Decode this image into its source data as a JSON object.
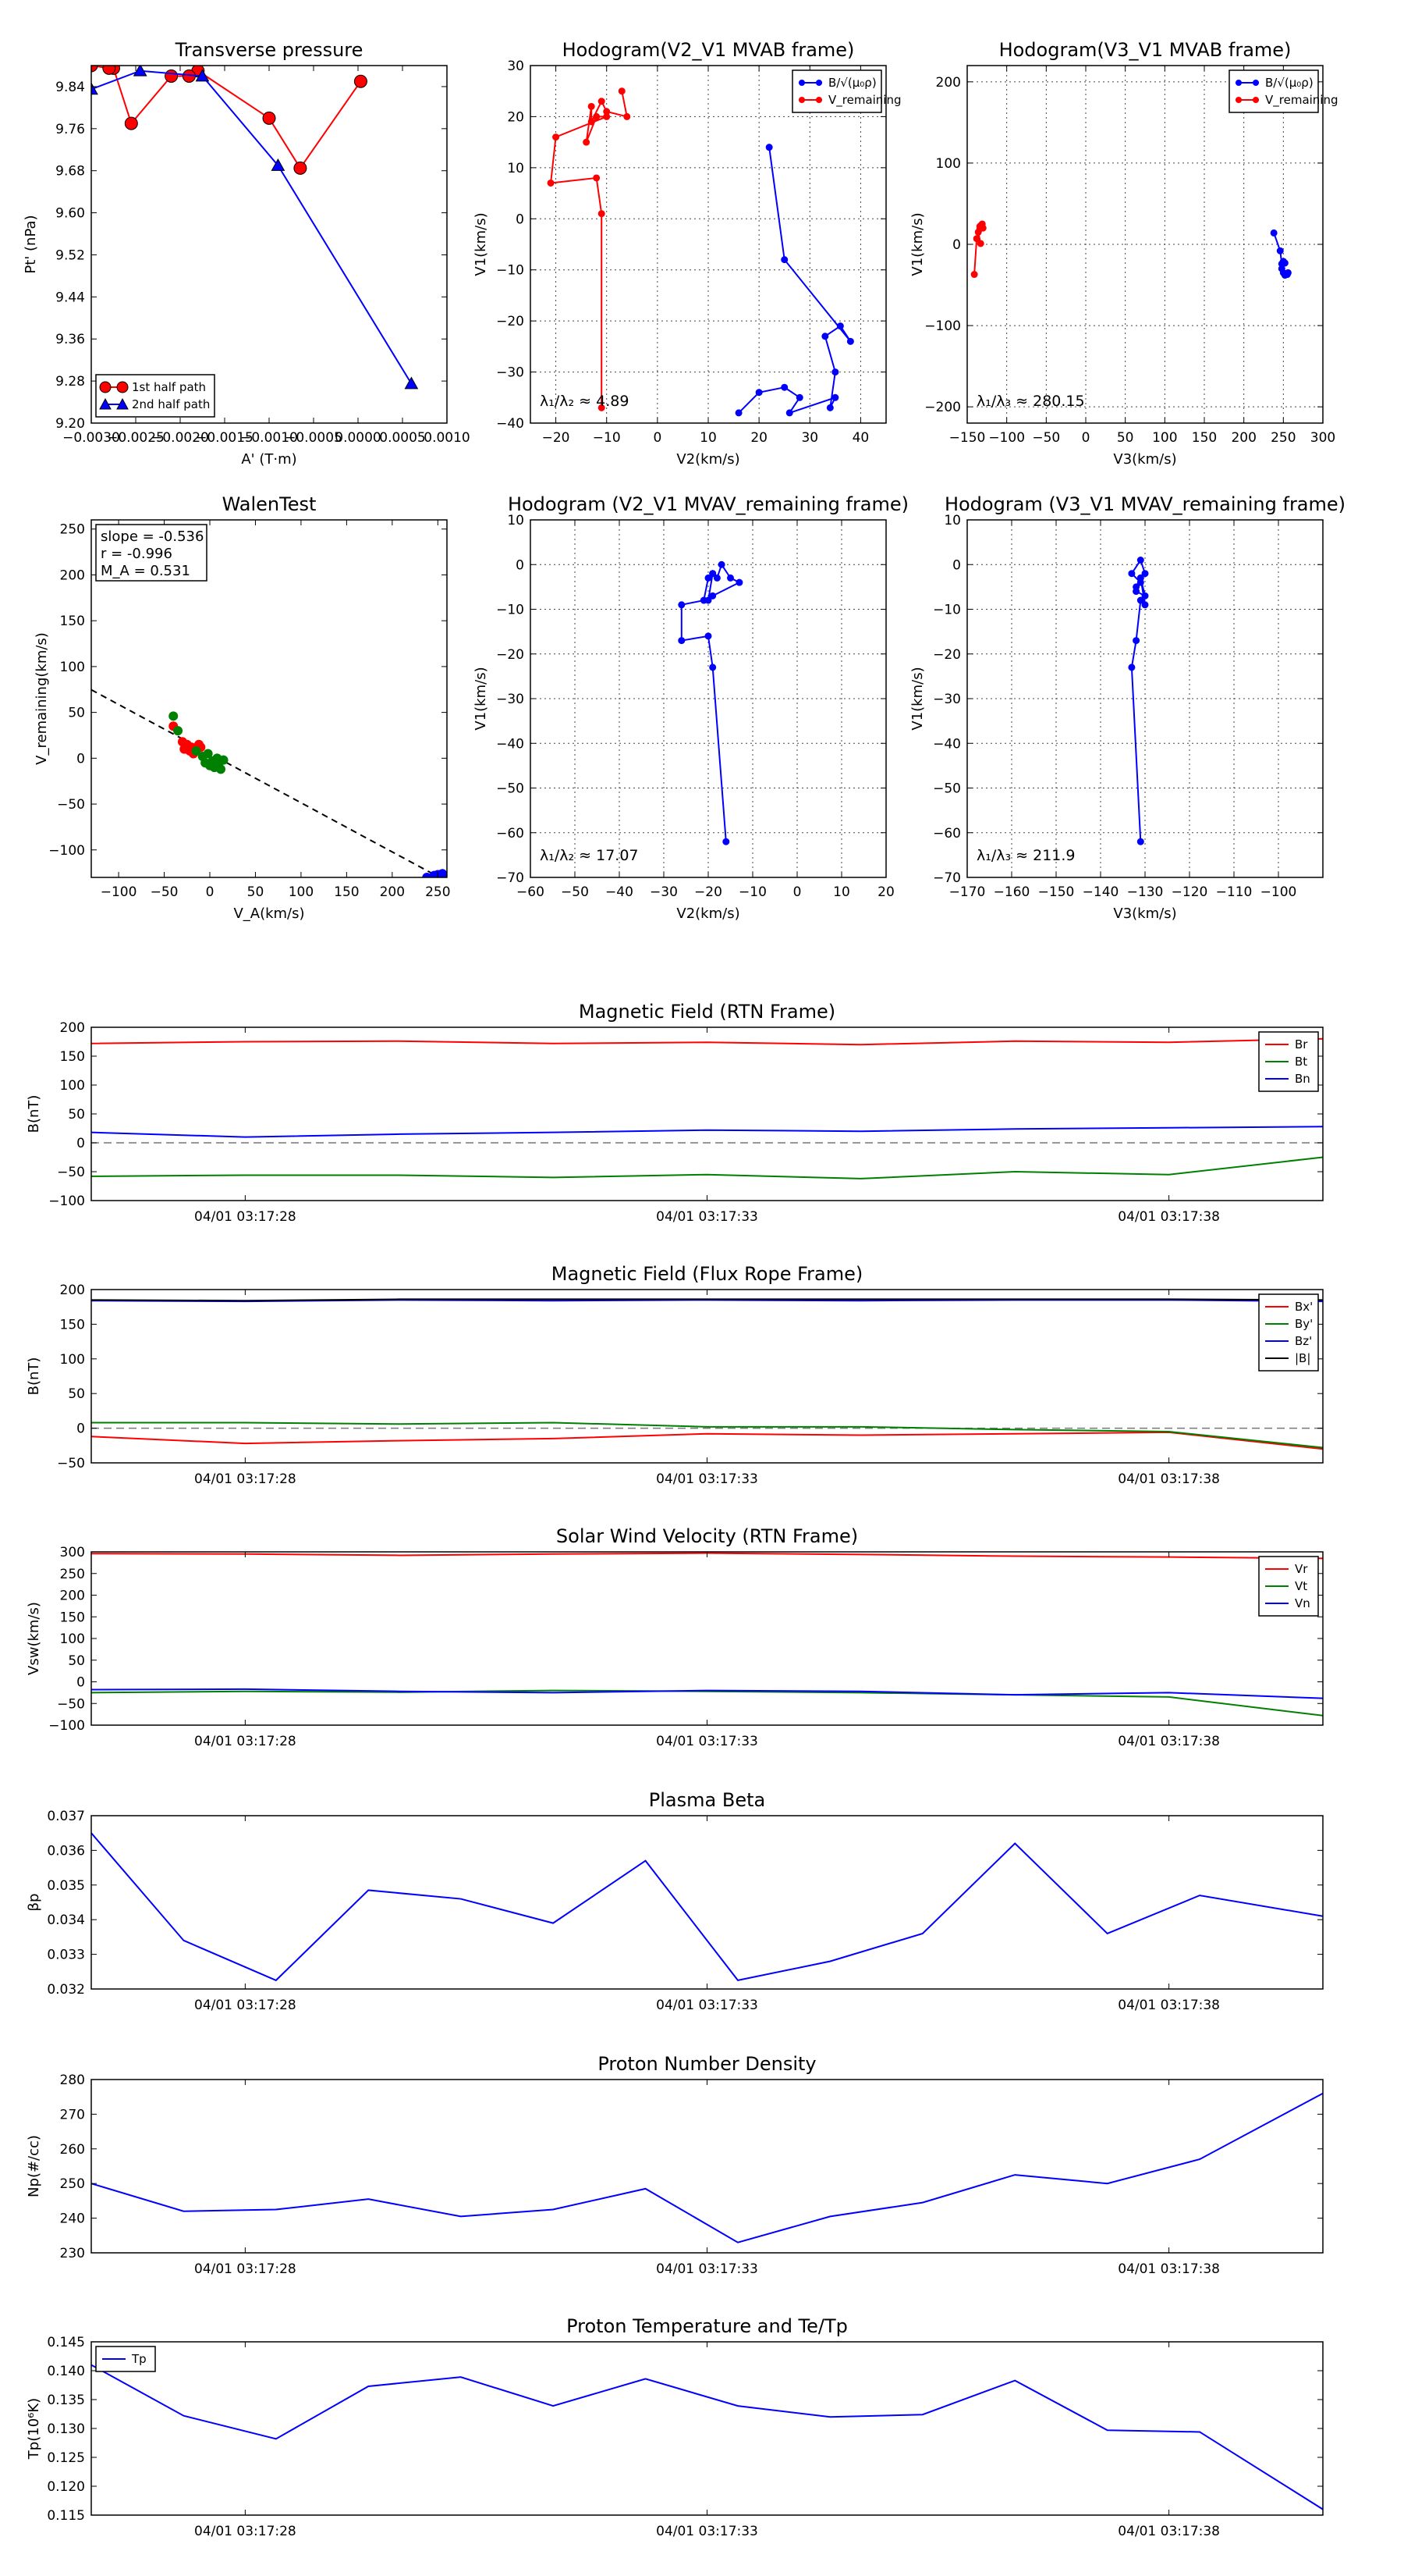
{
  "chart_data": [
    {
      "id": "p1",
      "type": "line",
      "title": "Transverse pressure",
      "xlabel": "A' (T·m)",
      "ylabel": "Pt' (nPa)",
      "xlim": [
        -0.003,
        0.001
      ],
      "ylim": [
        9.2,
        9.88
      ],
      "xticks": [
        -0.003,
        -0.0025,
        -0.002,
        -0.0015,
        -0.001,
        -0.0005,
        0.0,
        0.0005,
        0.001
      ],
      "xtick_labels": [
        "−0.0030",
        "−0.0025",
        "−0.0020",
        "−0.0015",
        "−0.0010",
        "−0.0005",
        "0.0000",
        "0.0005",
        "0.0010"
      ],
      "yticks": [
        9.2,
        9.28,
        9.36,
        9.44,
        9.52,
        9.6,
        9.68,
        9.76,
        9.84
      ],
      "ytick_labels": [
        "9.20",
        "9.28",
        "9.36",
        "9.44",
        "9.52",
        "9.60",
        "9.68",
        "9.76",
        "9.84"
      ],
      "legend": "lower-left",
      "series": [
        {
          "name": "1st half path",
          "color": "#ff0000",
          "marker": "circle",
          "x": [
            3e-05,
            -0.00065,
            -0.001,
            -0.0018,
            -0.0019,
            -0.0021,
            -0.00255,
            -0.00275,
            -0.0028,
            -0.003
          ],
          "y": [
            9.85,
            9.685,
            9.78,
            9.87,
            9.86,
            9.86,
            9.77,
            9.875,
            9.875,
            9.88
          ]
        },
        {
          "name": "2nd half path",
          "color": "#0000ff",
          "marker": "triangle",
          "x": [
            -0.003,
            -0.00245,
            -0.00175,
            -0.0009,
            0.0006
          ],
          "y": [
            9.835,
            9.87,
            9.86,
            9.69,
            9.275
          ]
        }
      ]
    },
    {
      "id": "p2",
      "type": "line",
      "title": "Hodogram(V2_V1 MVAB frame)",
      "xlabel": "V2(km/s)",
      "ylabel": "V1(km/s)",
      "xlim": [
        -25,
        45
      ],
      "ylim": [
        -40,
        30
      ],
      "xticks": [
        -20,
        -10,
        0,
        10,
        20,
        30,
        40
      ],
      "yticks": [
        -40,
        -30,
        -20,
        -10,
        0,
        10,
        20,
        30
      ],
      "annotation": "λ₁/λ₂ ≈ 4.89",
      "legend": "top-right",
      "series": [
        {
          "name": "B/√(μ₀ρ)",
          "color": "#0000ff",
          "x": [
            22,
            25,
            38,
            36,
            33,
            35,
            34,
            35,
            26,
            28,
            25,
            20,
            16
          ],
          "y": [
            14,
            -8,
            -24,
            -21,
            -23,
            -30,
            -37,
            -35,
            -38,
            -35,
            -33,
            -34,
            -38
          ]
        },
        {
          "name": "V_remaining",
          "color": "#ff0000",
          "x": [
            -7,
            -6,
            -10,
            -11,
            -13,
            -13,
            -14,
            -12,
            -10,
            -20,
            -21,
            -12,
            -11,
            -11
          ],
          "y": [
            25,
            20,
            21,
            23,
            19,
            22,
            15,
            20,
            20,
            16,
            7,
            8,
            1,
            -37
          ]
        }
      ]
    },
    {
      "id": "p3",
      "type": "line",
      "title": "Hodogram(V3_V1 MVAB frame)",
      "xlabel": "V3(km/s)",
      "ylabel": "V1(km/s)",
      "xlim": [
        -150,
        300
      ],
      "ylim": [
        -220,
        220
      ],
      "xticks": [
        -150,
        -100,
        -50,
        0,
        50,
        100,
        150,
        200,
        250,
        300
      ],
      "yticks": [
        -200,
        -100,
        0,
        100,
        200
      ],
      "annotation": "λ₁/λ₃ ≈ 280.15",
      "legend": "top-right",
      "series": [
        {
          "name": "B/√(μ₀ρ)",
          "color": "#0000ff",
          "x": [
            238,
            246,
            248,
            250,
            252,
            248,
            255,
            250,
            252,
            256
          ],
          "y": [
            14,
            -8,
            -24,
            -21,
            -23,
            -30,
            -37,
            -35,
            -38,
            -35
          ]
        },
        {
          "name": "V_remaining",
          "color": "#ff0000",
          "x": [
            -131,
            -130,
            -132,
            -133,
            -134,
            -134,
            -136,
            -133,
            -138,
            -141
          ],
          "y": [
            25,
            20,
            21,
            23,
            19,
            22,
            15,
            1,
            7,
            -37
          ]
        }
      ]
    },
    {
      "id": "p4",
      "type": "scatter",
      "title": "WalenTest",
      "xlabel": "V_A(km/s)",
      "ylabel": "V_remaining(km/s)",
      "xlim": [
        -130,
        260
      ],
      "ylim": [
        -130,
        260
      ],
      "xticks": [
        -100,
        -50,
        0,
        50,
        100,
        150,
        200,
        250
      ],
      "yticks": [
        -100,
        -50,
        0,
        50,
        100,
        150,
        200,
        250
      ],
      "stats": [
        "slope = -0.536",
        "r = -0.996",
        "M_A = 0.531"
      ],
      "fit_line": {
        "slope": -0.536,
        "intercept": 5
      },
      "series": [
        {
          "name": "red points",
          "color": "#ff0000",
          "x": [
            -40,
            -30,
            -25,
            -20,
            -15,
            -12,
            -10,
            -22,
            -18,
            -28
          ],
          "y": [
            35,
            18,
            15,
            12,
            10,
            15,
            12,
            8,
            5,
            10
          ]
        },
        {
          "name": "green points",
          "color": "#008000",
          "x": [
            -40,
            -35,
            -8,
            -5,
            0,
            5,
            8,
            10,
            12,
            -2,
            3,
            15,
            -15
          ],
          "y": [
            46,
            30,
            2,
            -5,
            -8,
            -10,
            0,
            -5,
            -12,
            5,
            -3,
            -2,
            8
          ]
        },
        {
          "name": "blue points",
          "color": "#0000ff",
          "x": [
            238,
            246,
            250,
            252,
            255,
            256
          ],
          "y": [
            -130,
            -128,
            -127,
            -129,
            -126,
            -130
          ]
        }
      ]
    },
    {
      "id": "p5",
      "type": "line",
      "title": "Hodogram (V2_V1 MVAV_remaining frame)",
      "xlabel": "V2(km/s)",
      "ylabel": "V1(km/s)",
      "xlim": [
        -60,
        20
      ],
      "ylim": [
        -70,
        10
      ],
      "xticks": [
        -60,
        -50,
        -40,
        -30,
        -20,
        -10,
        0,
        10,
        20
      ],
      "yticks": [
        -70,
        -60,
        -50,
        -40,
        -30,
        -20,
        -10,
        0,
        10
      ],
      "annotation": "λ₁/λ₂ ≈ 17.07",
      "series": [
        {
          "name": "V_remaining",
          "color": "#0000ff",
          "x": [
            -16,
            -19,
            -20,
            -26,
            -26,
            -21,
            -20,
            -19,
            -18,
            -17,
            -15,
            -13,
            -19,
            -20,
            -19
          ],
          "y": [
            -62,
            -23,
            -16,
            -17,
            -9,
            -8,
            -3,
            -2,
            -3,
            0,
            -3,
            -4,
            -7,
            -8,
            -2
          ]
        }
      ]
    },
    {
      "id": "p6",
      "type": "line",
      "title": "Hodogram (V3_V1 MVAV_remaining frame)",
      "xlabel": "V3(km/s)",
      "ylabel": "V1(km/s)",
      "xlim": [
        -170,
        -90
      ],
      "ylim": [
        -70,
        10
      ],
      "xticks": [
        -170,
        -160,
        -150,
        -140,
        -130,
        -120,
        -110,
        -100
      ],
      "yticks": [
        -70,
        -60,
        -50,
        -40,
        -30,
        -20,
        -10,
        0,
        10
      ],
      "annotation": "λ₁/λ₃ ≈ 211.9",
      "series": [
        {
          "name": "V_remaining",
          "color": "#0000ff",
          "x": [
            -131,
            -133,
            -132,
            -131,
            -130,
            -131,
            -132,
            -130,
            -131,
            -133,
            -131,
            -132,
            -130,
            -131
          ],
          "y": [
            -62,
            -23,
            -17,
            -8,
            -9,
            -3,
            -5,
            -2,
            1,
            -2,
            -4,
            -6,
            -7,
            -3
          ]
        }
      ]
    },
    {
      "id": "p7",
      "type": "line",
      "title": "Magnetic Field (RTN Frame)",
      "ylabel": "B(nT)",
      "ylim": [
        -100,
        200
      ],
      "yticks": [
        -100,
        -50,
        0,
        50,
        100,
        150,
        200
      ],
      "xtick_labels": [
        "04/01 03:17:28",
        "04/01 03:17:33",
        "04/01 03:17:38"
      ],
      "xtick_positions": [
        1,
        4,
        7
      ],
      "xlim": [
        0,
        8
      ],
      "zero_line": true,
      "legend": "top-right",
      "x": [
        0,
        1,
        2,
        3,
        4,
        5,
        6,
        7,
        8
      ],
      "series": [
        {
          "name": "Br",
          "color": "#ff0000",
          "values": [
            172,
            175,
            176,
            172,
            174,
            170,
            176,
            174,
            180
          ]
        },
        {
          "name": "Bt",
          "color": "#008000",
          "values": [
            -58,
            -56,
            -56,
            -60,
            -55,
            -62,
            -50,
            -55,
            -25
          ]
        },
        {
          "name": "Bn",
          "color": "#0000ff",
          "values": [
            18,
            10,
            15,
            18,
            22,
            20,
            24,
            26,
            28
          ]
        }
      ]
    },
    {
      "id": "p8",
      "type": "line",
      "title": "Magnetic Field (Flux Rope Frame)",
      "ylabel": "B(nT)",
      "ylim": [
        -50,
        200
      ],
      "yticks": [
        -50,
        0,
        50,
        100,
        150,
        200
      ],
      "xtick_labels": [
        "04/01 03:17:28",
        "04/01 03:17:33",
        "04/01 03:17:38"
      ],
      "xtick_positions": [
        1,
        4,
        7
      ],
      "xlim": [
        0,
        8
      ],
      "zero_line": true,
      "legend": "top-right",
      "x": [
        0,
        1,
        2,
        3,
        4,
        5,
        6,
        7,
        8
      ],
      "series": [
        {
          "name": "Bx'",
          "color": "#ff0000",
          "values": [
            -12,
            -22,
            -18,
            -15,
            -8,
            -10,
            -8,
            -6,
            -30
          ]
        },
        {
          "name": "By'",
          "color": "#008000",
          "values": [
            8,
            8,
            6,
            8,
            2,
            2,
            -2,
            -5,
            -28
          ]
        },
        {
          "name": "Bz'",
          "color": "#0000ff",
          "values": [
            184,
            183,
            185,
            184,
            185,
            184,
            185,
            185,
            183
          ]
        },
        {
          "name": "|B|",
          "color": "#000000",
          "values": [
            185,
            184,
            186,
            186,
            186,
            186,
            186,
            186,
            185
          ]
        }
      ]
    },
    {
      "id": "p9",
      "type": "line",
      "title": "Solar Wind Velocity (RTN Frame)",
      "ylabel": "Vsw(km/s)",
      "ylim": [
        -100,
        300
      ],
      "yticks": [
        -100,
        -50,
        0,
        50,
        100,
        150,
        200,
        250,
        300
      ],
      "xtick_labels": [
        "04/01 03:17:28",
        "04/01 03:17:33",
        "04/01 03:17:38"
      ],
      "xtick_positions": [
        1,
        4,
        7
      ],
      "xlim": [
        0,
        8
      ],
      "legend": "top-right",
      "x": [
        0,
        1,
        2,
        3,
        4,
        5,
        6,
        7,
        8
      ],
      "series": [
        {
          "name": "Vr",
          "color": "#ff0000",
          "values": [
            296,
            295,
            292,
            295,
            297,
            294,
            290,
            288,
            285
          ]
        },
        {
          "name": "Vt",
          "color": "#008000",
          "values": [
            -25,
            -22,
            -24,
            -20,
            -22,
            -25,
            -30,
            -35,
            -78
          ]
        },
        {
          "name": "Vn",
          "color": "#0000ff",
          "values": [
            -18,
            -17,
            -22,
            -25,
            -20,
            -22,
            -30,
            -25,
            -38
          ]
        }
      ]
    },
    {
      "id": "p10",
      "type": "line",
      "title": "Plasma Beta",
      "ylabel": "βp",
      "ylim": [
        0.032,
        0.037
      ],
      "yticks": [
        0.032,
        0.033,
        0.034,
        0.035,
        0.036,
        0.037
      ],
      "xtick_labels": [
        "04/01 03:17:28",
        "04/01 03:17:33",
        "04/01 03:17:38"
      ],
      "xtick_positions": [
        1,
        4,
        7
      ],
      "xlim": [
        0,
        8
      ],
      "x": [
        0,
        0.6,
        1.2,
        1.8,
        2.4,
        3.0,
        3.6,
        4.2,
        4.8,
        5.4,
        6.0,
        6.6,
        7.2,
        8.0
      ],
      "series": [
        {
          "name": "beta",
          "color": "#0000ff",
          "values": [
            0.0365,
            0.0334,
            0.03225,
            0.03485,
            0.0346,
            0.0339,
            0.0357,
            0.03225,
            0.0328,
            0.0336,
            0.0362,
            0.0336,
            0.0347,
            0.0341
          ]
        }
      ]
    },
    {
      "id": "p11",
      "type": "line",
      "title": "Proton Number Density",
      "ylabel": "Np(#/cc)",
      "ylim": [
        230,
        280
      ],
      "yticks": [
        230,
        240,
        250,
        260,
        270,
        280
      ],
      "xtick_labels": [
        "04/01 03:17:28",
        "04/01 03:17:33",
        "04/01 03:17:38"
      ],
      "xtick_positions": [
        1,
        4,
        7
      ],
      "xlim": [
        0,
        8
      ],
      "x": [
        0,
        0.6,
        1.2,
        1.8,
        2.4,
        3.0,
        3.6,
        4.2,
        4.8,
        5.4,
        6.0,
        6.6,
        7.2,
        8.0
      ],
      "series": [
        {
          "name": "Np",
          "color": "#0000ff",
          "values": [
            250,
            242,
            242.5,
            245.5,
            240.5,
            242.5,
            248.5,
            233,
            240.5,
            244.5,
            252.5,
            250,
            257,
            276
          ]
        }
      ]
    },
    {
      "id": "p12",
      "type": "line",
      "title": "Proton Temperature and Te/Tp",
      "ylabel": "Tp(10⁶K)",
      "ylim": [
        0.115,
        0.145
      ],
      "yticks": [
        0.115,
        0.12,
        0.125,
        0.13,
        0.135,
        0.14,
        0.145
      ],
      "xtick_labels": [
        "04/01 03:17:28",
        "04/01 03:17:33",
        "04/01 03:17:38"
      ],
      "xtick_positions": [
        1,
        4,
        7
      ],
      "xlim": [
        0,
        8
      ],
      "legend": "top-left",
      "x": [
        0,
        0.6,
        1.2,
        1.8,
        2.4,
        3.0,
        3.6,
        4.2,
        4.8,
        5.4,
        6.0,
        6.6,
        7.2,
        8.0
      ],
      "series": [
        {
          "name": "Tp",
          "color": "#0000ff",
          "values": [
            0.141,
            0.1322,
            0.1282,
            0.1373,
            0.1389,
            0.1339,
            0.1386,
            0.1339,
            0.132,
            0.1324,
            0.1383,
            0.1297,
            0.1294,
            0.116
          ]
        }
      ]
    }
  ]
}
